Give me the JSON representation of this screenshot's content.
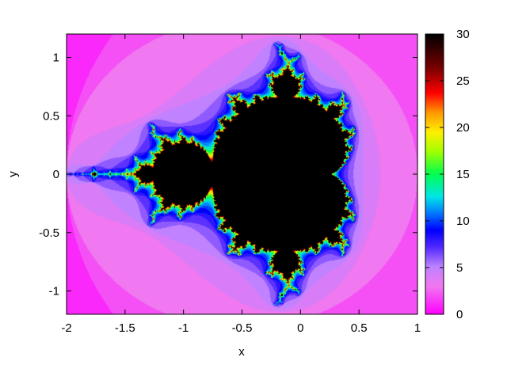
{
  "chart_data": {
    "type": "heatmap",
    "title": "",
    "xlabel": "x",
    "ylabel": "y",
    "xlim": [
      -2,
      1
    ],
    "ylim": [
      -1.2,
      1.2
    ],
    "x_ticks": [
      -2,
      -1.5,
      -1,
      -0.5,
      0,
      0.5,
      1
    ],
    "x_tick_labels": [
      "-2",
      "-1.5",
      "-1",
      "-0.5",
      "0",
      "0.5",
      "1"
    ],
    "y_ticks": [
      -1,
      -0.5,
      0,
      0.5,
      1
    ],
    "y_tick_labels": [
      "-1",
      "-0.5",
      "0",
      "0.5",
      "1"
    ],
    "colorbar": {
      "range": [
        0,
        30
      ],
      "ticks": [
        0,
        5,
        10,
        15,
        20,
        25,
        30
      ],
      "tick_labels": [
        "0",
        "5",
        "10",
        "15",
        "20",
        "25",
        "30"
      ],
      "palette": "rainbow (magenta-blue-cyan-green-yellow-red-black)"
    },
    "z_description": "escape-time iteration count of z -> z^2 + c (Mandelbrot set), max 30",
    "max_iterations": 30,
    "grid": false,
    "legend": "colorbar-right"
  }
}
